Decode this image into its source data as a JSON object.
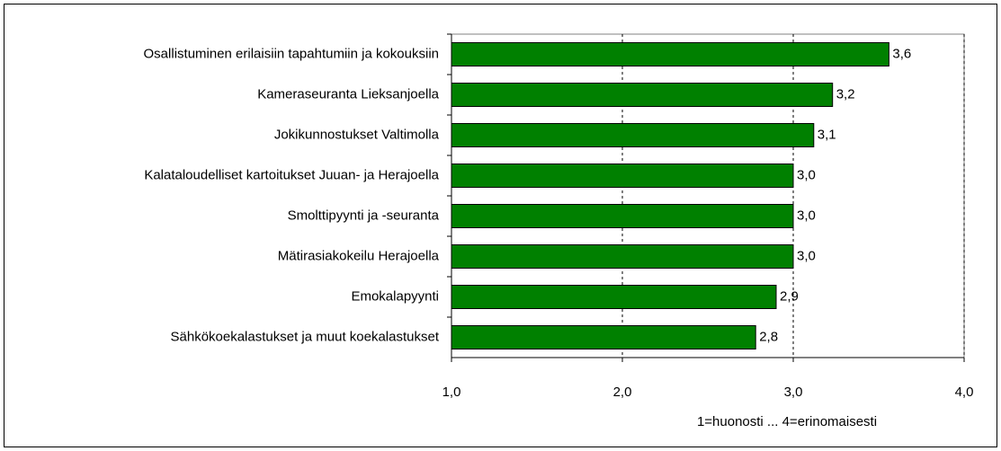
{
  "chart_data": {
    "type": "barh",
    "categories": [
      "Osallistuminen erilaisiin tapahtumiin ja kokouksiin",
      "Kameraseuranta Lieksanjoella",
      "Jokikunnostukset Valtimolla",
      "Kalataloudelliset kartoitukset Juuan- ja Herajoella",
      "Smolttipyynti ja -seuranta",
      "Mätirasiakokeilu Herajoella",
      "Emokalapyynti",
      "Sähkökoekalastukset ja muut koekalastukset"
    ],
    "values": [
      3.56,
      3.23,
      3.12,
      3.0,
      3.0,
      3.0,
      2.9,
      2.78
    ],
    "value_labels": [
      "3,6",
      "3,2",
      "3,1",
      "3,0",
      "3,0",
      "3,0",
      "2,9",
      "2,8"
    ],
    "color": "#008000",
    "xlim": [
      1,
      4
    ],
    "xticks": [
      {
        "value": 1,
        "label": "1,0"
      },
      {
        "value": 2,
        "label": "2,0"
      },
      {
        "value": 3,
        "label": "3,0"
      },
      {
        "value": 4,
        "label": "4,0"
      }
    ],
    "xlabel": "1=huonosti ... 4=erinomaisesti",
    "grid": true
  }
}
